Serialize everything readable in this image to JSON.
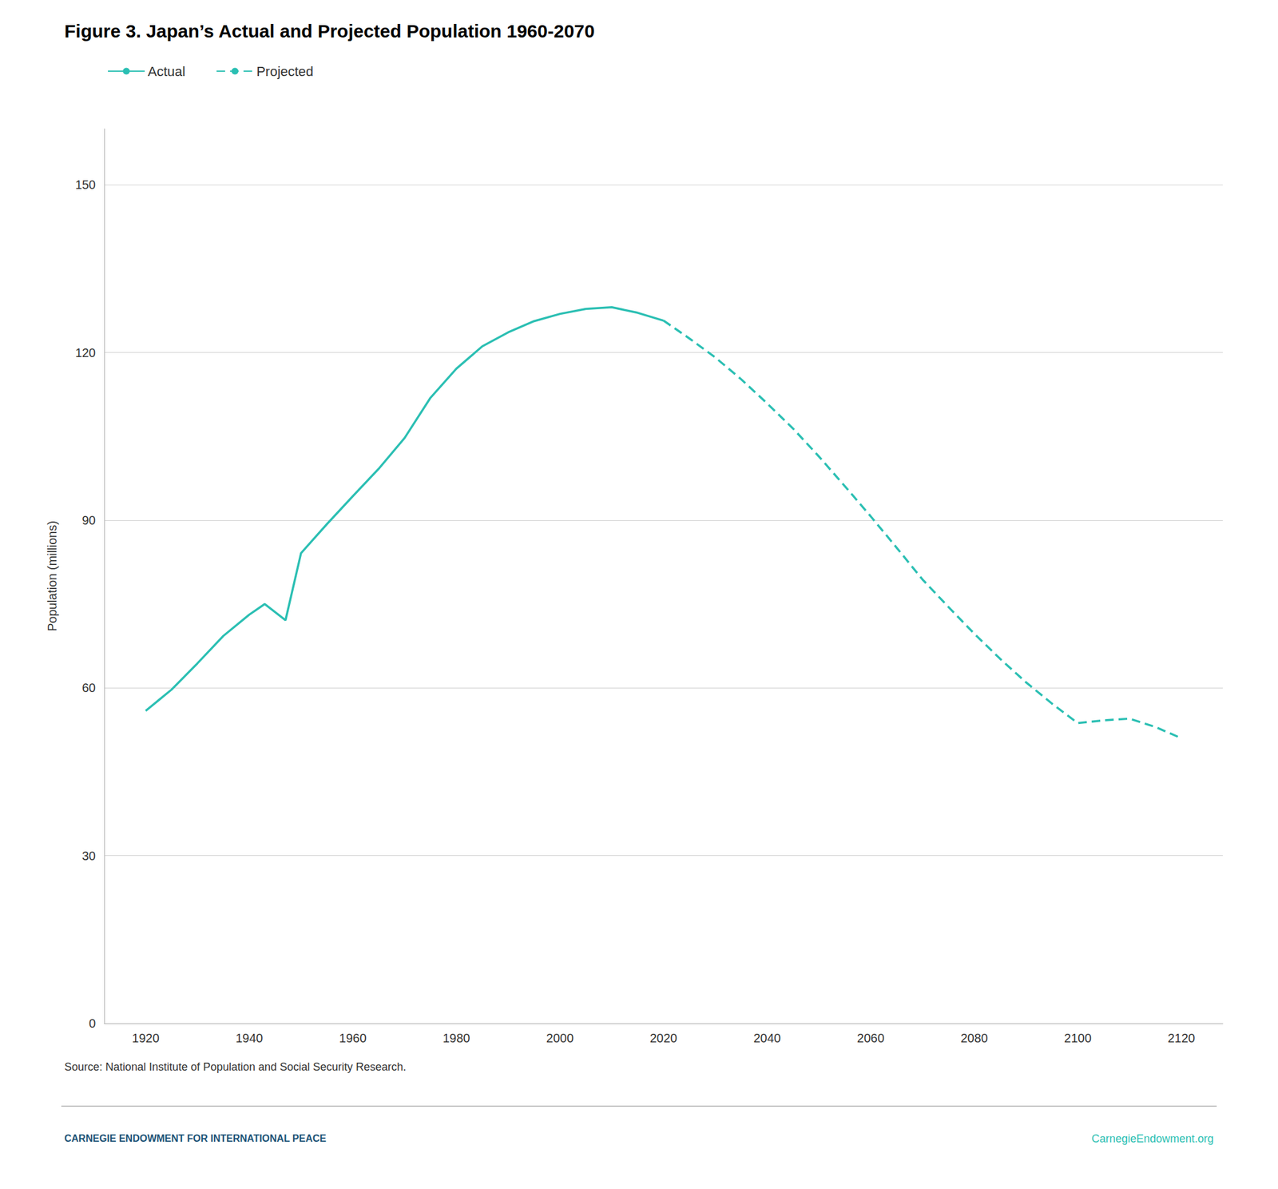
{
  "chart_data": {
    "type": "line",
    "title": "Figure 3. Japan’s Actual and Projected Population 1960-2070",
    "ylabel": "Population (millions)",
    "series": [
      {
        "name": "Actual",
        "color": "#2BBFB3",
        "line_style": "solid",
        "x": [
          1920,
          1925,
          1930,
          1935,
          1940,
          1943,
          1947,
          1950,
          1955,
          1960,
          1965,
          1970,
          1975,
          1980,
          1985,
          1990,
          1995,
          2000,
          2005,
          2010,
          2015,
          2020
        ],
        "values": [
          55.9,
          59.7,
          64.4,
          69.3,
          73.1,
          75.0,
          72.1,
          84.1,
          89.3,
          94.3,
          99.2,
          104.7,
          111.9,
          117.1,
          121.1,
          123.6,
          125.6,
          126.9,
          127.8,
          128.1,
          127.1,
          125.7
        ]
      },
      {
        "name": "Projected",
        "color": "#2BBFB3",
        "line_style": "dashed",
        "x": [
          2020,
          2025,
          2030,
          2035,
          2040,
          2045,
          2050,
          2055,
          2060,
          2065,
          2070,
          2075,
          2080,
          2085,
          2090,
          2095,
          2100,
          2105,
          2110,
          2115,
          2120
        ],
        "values": [
          125.7,
          122.5,
          119.1,
          115.2,
          110.9,
          106.4,
          101.4,
          96.1,
          90.7,
          85.1,
          79.4,
          74.5,
          69.7,
          65.2,
          61.0,
          57.2,
          53.7,
          54.2,
          54.5,
          53.0,
          51.0
        ]
      }
    ],
    "xlim": [
      1912,
      2128
    ],
    "xticks": [
      1920,
      1940,
      1960,
      1980,
      2000,
      2020,
      2040,
      2060,
      2080,
      2100,
      2120
    ],
    "ylim": [
      0,
      160
    ],
    "yticks": [
      0,
      30,
      60,
      90,
      120,
      150
    ],
    "grid": true,
    "legend": "upper left",
    "annotations": [
      {
        "text": "Source: National Institute of Population and Social Security Research."
      },
      {
        "text": "CARNEGIE ENDOWMENT FOR INTERNATIONAL PEACE",
        "color": "#1B5276"
      },
      {
        "text": "CarnegieEndowment.org",
        "color": "#2BBFB3"
      }
    ]
  }
}
